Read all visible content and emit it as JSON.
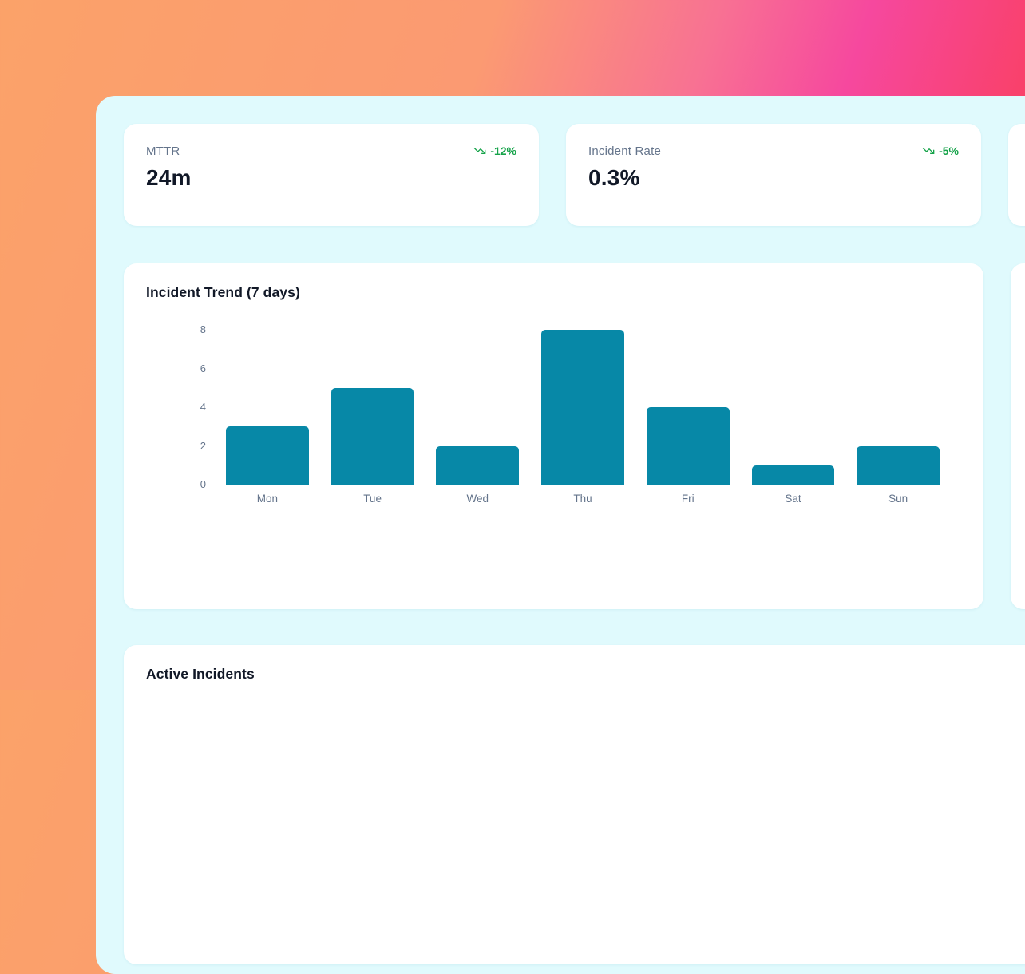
{
  "page": {
    "panel_bg": "#E0FAFD",
    "gradient_colors": [
      "#FBA269",
      "#FB9A72",
      "#F6489E",
      "#FB3D4E"
    ]
  },
  "kpi_cards": [
    {
      "label": "MTTR",
      "value": "24m",
      "trend": "-12%",
      "trend_color": "#16A34A",
      "trend_icon": "trending-down-icon"
    },
    {
      "label": "Incident Rate",
      "value": "0.3%",
      "trend": "-5%",
      "trend_color": "#16A34A",
      "trend_icon": "trending-down-icon"
    }
  ],
  "trend_chart_card": {
    "title": "Incident Trend (7 days)"
  },
  "chart_data": {
    "type": "bar",
    "title": "Incident Trend (7 days)",
    "categories": [
      "Mon",
      "Tue",
      "Wed",
      "Thu",
      "Fri",
      "Sat",
      "Sun"
    ],
    "values": [
      3,
      5,
      2,
      8,
      4,
      1,
      2
    ],
    "xlabel": "",
    "ylabel": "",
    "ylim": [
      0,
      8
    ],
    "yticks": [
      0,
      2,
      4,
      6,
      8
    ],
    "grid": false,
    "legend": false,
    "bar_color": "#0788A7"
  },
  "incidents_card": {
    "title": "Active Incidents"
  }
}
